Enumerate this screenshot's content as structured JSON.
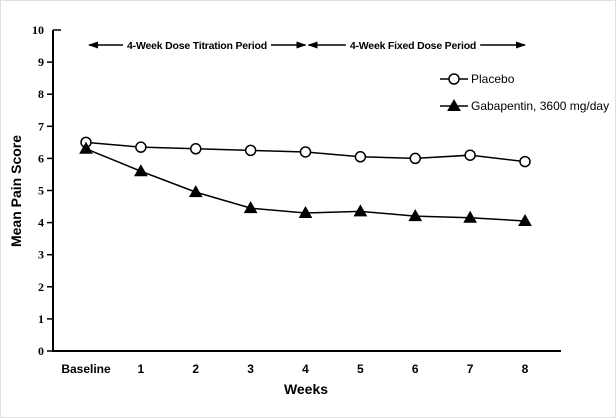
{
  "chart_data": {
    "type": "line",
    "categories": [
      "Baseline",
      "1",
      "2",
      "3",
      "4",
      "5",
      "6",
      "7",
      "8"
    ],
    "series": [
      {
        "name": "Placebo",
        "marker": "open-circle",
        "values": [
          6.5,
          6.35,
          6.3,
          6.25,
          6.2,
          6.05,
          6.0,
          6.1,
          5.9
        ]
      },
      {
        "name": "Gabapentin, 3600 mg/day",
        "marker": "filled-triangle",
        "values": [
          6.3,
          5.6,
          4.95,
          4.45,
          4.3,
          4.35,
          4.2,
          4.15,
          4.05
        ]
      }
    ],
    "title": "",
    "xlabel": "Weeks",
    "ylabel": "Mean Pain Score",
    "ylim": [
      0,
      10
    ],
    "yticks": [
      0,
      1,
      2,
      3,
      4,
      5,
      6,
      7,
      8,
      9,
      10
    ],
    "grid": false,
    "legend_position": "upper-right",
    "annotations": [
      {
        "label": "4-Week Dose Titration Period",
        "week_start": 0,
        "week_end": 4
      },
      {
        "label": "4-Week Fixed Dose Period",
        "week_start": 4,
        "week_end": 8
      }
    ],
    "colors": {
      "line": "#000000",
      "background": "#ffffff",
      "marker_fill_open": "#ffffff"
    }
  }
}
